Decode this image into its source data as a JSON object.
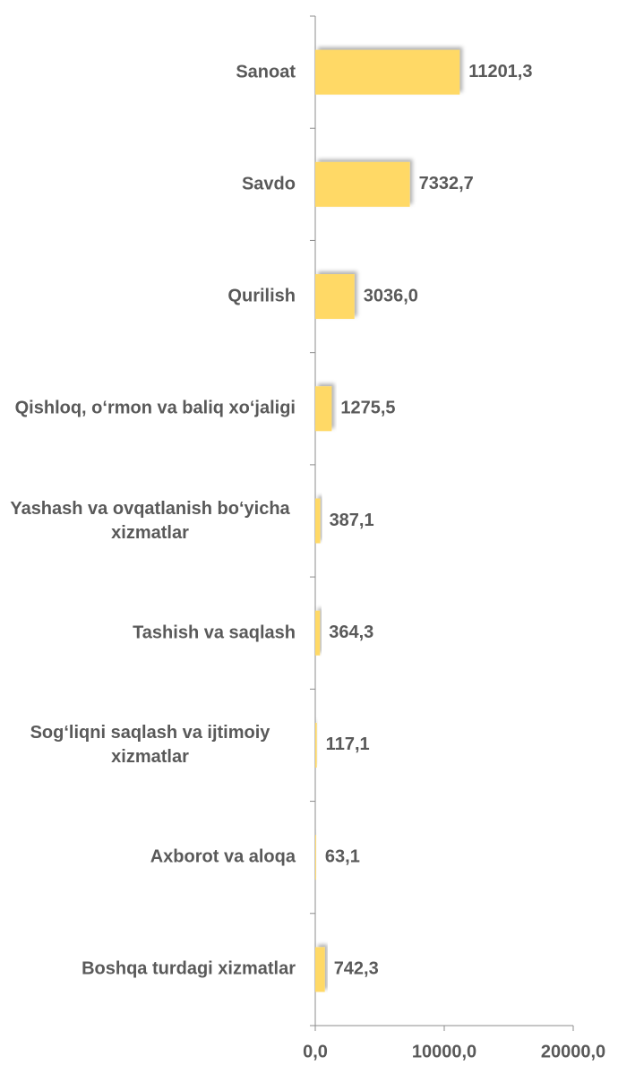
{
  "chart_data": {
    "type": "bar",
    "orientation": "horizontal",
    "categories": [
      "Sanoat",
      "Savdo",
      "Qurilish",
      "Qishloq, o‘rmon va baliq xo‘jaligi",
      "Yashash va ovqatlanish bo‘yicha xizmatlar",
      "Tashish va saqlash",
      "Sog‘liqni saqlash va ijtimoiy xizmatlar",
      "Axborot va aloqa",
      "Boshqa turdagi xizmatlar"
    ],
    "values": [
      11201.3,
      7332.7,
      3036.0,
      1275.5,
      387.1,
      364.3,
      117.1,
      63.1,
      742.3
    ],
    "value_labels": [
      "11201,3",
      "7332,7",
      "3036,0",
      "1275,5",
      "387,1",
      "364,3",
      "117,1",
      "63,1",
      "742,3"
    ],
    "color": "#ffd966",
    "xlim": [
      0,
      20000
    ],
    "xticks": [
      {
        "value": 0,
        "label": "0,0"
      },
      {
        "value": 10000,
        "label": "10000,0"
      },
      {
        "value": 20000,
        "label": "20000,0"
      }
    ]
  }
}
